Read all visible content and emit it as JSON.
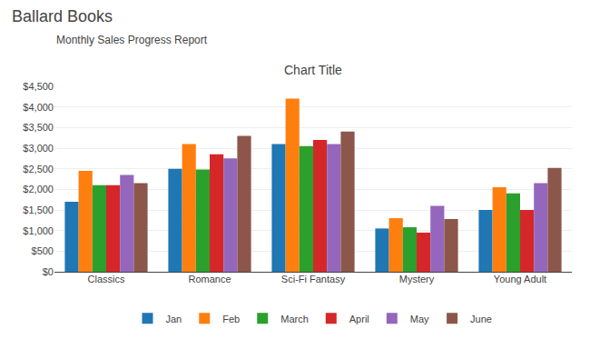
{
  "chart_data": {
    "type": "bar",
    "title": "Ballard Books",
    "subtitle": "Monthly Sales Progress Report",
    "annotations": [
      "Chart Title"
    ],
    "categories": [
      "Classics",
      "Romance",
      "Sci-Fi Fantasy",
      "Mystery",
      "Young Adult"
    ],
    "series": [
      {
        "name": "Jan",
        "values": [
          1700,
          2500,
          3100,
          1050,
          1500
        ]
      },
      {
        "name": "Feb",
        "values": [
          2450,
          3100,
          4200,
          1300,
          2050
        ]
      },
      {
        "name": "March",
        "values": [
          2100,
          2480,
          3050,
          1080,
          1900
        ]
      },
      {
        "name": "April",
        "values": [
          2100,
          2850,
          3200,
          950,
          1500
        ]
      },
      {
        "name": "May",
        "values": [
          2350,
          2750,
          3100,
          1600,
          2150
        ]
      },
      {
        "name": "June",
        "values": [
          2150,
          3300,
          3400,
          1280,
          2520
        ]
      }
    ],
    "ylim": [
      0,
      4500
    ],
    "yticks": [
      {
        "value": 0,
        "label": "$0"
      },
      {
        "value": 500,
        "label": "$500"
      },
      {
        "value": 1000,
        "label": "$1,000"
      },
      {
        "value": 1500,
        "label": "$1,500"
      },
      {
        "value": 2000,
        "label": "$2,000"
      },
      {
        "value": 2500,
        "label": "$2,500"
      },
      {
        "value": 3000,
        "label": "$3,000"
      },
      {
        "value": 3500,
        "label": "$3,500"
      },
      {
        "value": 4000,
        "label": "$4,000"
      },
      {
        "value": 4500,
        "label": "$4,500"
      }
    ],
    "grid": true,
    "legend": "bottom"
  }
}
